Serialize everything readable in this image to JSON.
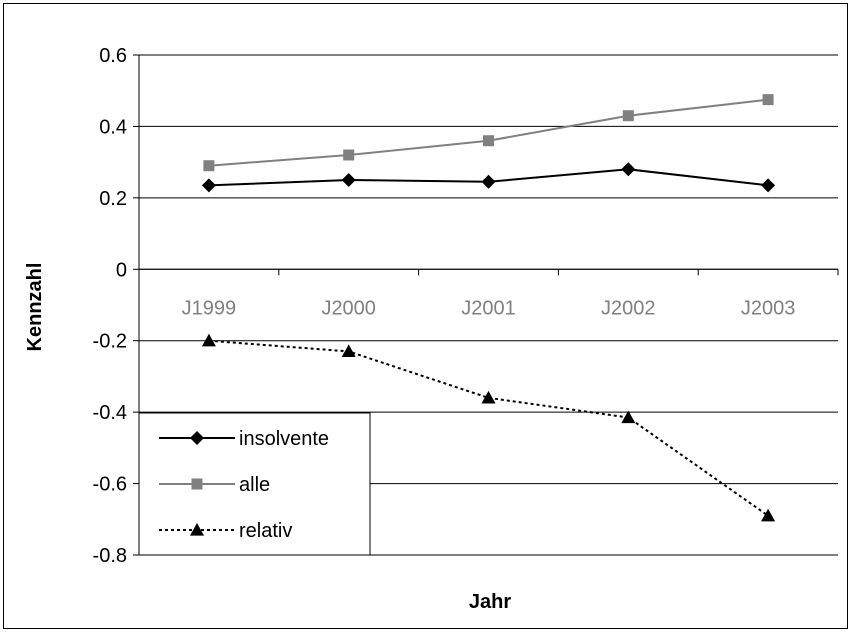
{
  "chart_data": {
    "type": "line",
    "title": "",
    "xlabel": "Jahr",
    "ylabel": "Kennzahl",
    "categories": [
      "J1999",
      "J2000",
      "J2001",
      "J2002",
      "J2003"
    ],
    "ylim": [
      -0.8,
      0.6
    ],
    "yticks": [
      0.6,
      0.4,
      0.2,
      0,
      -0.2,
      -0.4,
      -0.6,
      -0.8
    ],
    "ytick_labels": [
      "0.6",
      "0.4",
      "0.2",
      "0",
      "-0.2",
      "-0.4",
      "-0.6",
      "-0.8"
    ],
    "grid": true,
    "legend_position": "bottom-left",
    "series": [
      {
        "name": "insolvente",
        "values": [
          0.235,
          0.25,
          0.245,
          0.28,
          0.235
        ],
        "color": "#000000",
        "marker": "diamond",
        "dash": "solid"
      },
      {
        "name": "alle",
        "values": [
          0.29,
          0.32,
          0.36,
          0.43,
          0.475
        ],
        "color": "#808080",
        "marker": "square",
        "dash": "solid"
      },
      {
        "name": "relativ",
        "values": [
          -0.2,
          -0.23,
          -0.36,
          -0.415,
          -0.69
        ],
        "color": "#000000",
        "marker": "triangle",
        "dash": "dotted"
      }
    ]
  }
}
